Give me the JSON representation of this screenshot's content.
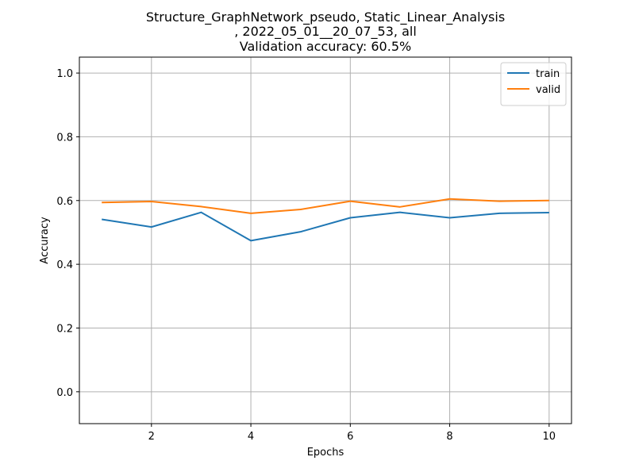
{
  "chart_data": {
    "type": "line",
    "title_lines": [
      "Structure_GraphNetwork_pseudo, Static_Linear_Analysis",
      ", 2022_05_01__20_07_53, all",
      "Validation accuracy: 60.5%"
    ],
    "xlabel": "Epochs",
    "ylabel": "Accuracy",
    "x": [
      1,
      2,
      3,
      4,
      5,
      6,
      7,
      8,
      9,
      10
    ],
    "xlim": [
      0.55,
      10.45
    ],
    "ylim": [
      -0.1,
      1.05
    ],
    "xticks": [
      2,
      4,
      6,
      8,
      10
    ],
    "yticks": [
      0.0,
      0.2,
      0.4,
      0.6,
      0.8,
      1.0
    ],
    "xtick_labels": [
      "2",
      "4",
      "6",
      "8",
      "10"
    ],
    "ytick_labels": [
      "0.0",
      "0.2",
      "0.4",
      "0.6",
      "0.8",
      "1.0"
    ],
    "grid": true,
    "legend_position": "top-right",
    "series": [
      {
        "name": "train",
        "color": "#1f77b4",
        "values": [
          0.541,
          0.517,
          0.563,
          0.474,
          0.502,
          0.546,
          0.563,
          0.546,
          0.56,
          0.562
        ]
      },
      {
        "name": "valid",
        "color": "#ff7f0e",
        "values": [
          0.594,
          0.597,
          0.581,
          0.56,
          0.572,
          0.598,
          0.58,
          0.605,
          0.598,
          0.6
        ]
      }
    ]
  }
}
